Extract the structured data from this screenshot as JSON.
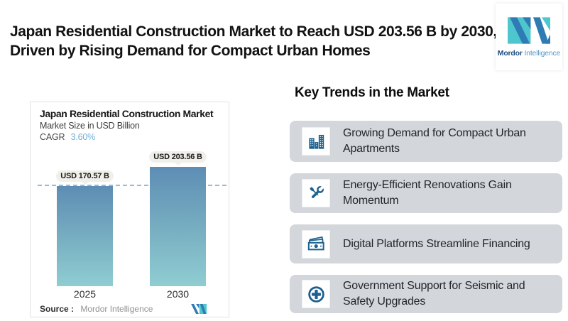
{
  "header": {
    "title": "Japan Residential Construction Market to Reach USD 203.56 B by 2030, Driven by Rising Demand for Compact Urban Homes",
    "logo": {
      "brand_bold": "Mordor",
      "brand_light": "Intelligence"
    }
  },
  "chart_card": {
    "title": "Japan Residential Construction Market",
    "subtitle": "Market Size in USD Billion",
    "cagr_label": "CAGR",
    "cagr_value": "3.60%",
    "source_label": "Source :",
    "source_value": "Mordor Intelligence"
  },
  "chart_data": {
    "type": "bar",
    "title": "Japan Residential Construction Market",
    "subtitle": "Market Size in USD Billion",
    "unit": "USD Billion",
    "cagr": "3.60%",
    "categories": [
      "2025",
      "2030"
    ],
    "values": [
      170.57,
      203.56
    ],
    "value_labels": [
      "USD 170.57 B",
      "USD 203.56 B"
    ],
    "dashed_reference_line_at": 170.57,
    "bar_gradient": [
      "#5e8db4",
      "#8fcdd2"
    ],
    "dashed_line_color": "#92bcdb",
    "source": "Mordor Intelligence",
    "legend": "none",
    "grid": "off"
  },
  "trends": {
    "heading": "Key Trends in the Market",
    "items": [
      {
        "icon": "buildings-icon",
        "text": "Growing Demand for Compact Urban Apartments"
      },
      {
        "icon": "tools-icon",
        "text": "Energy-Efficient Renovations Gain Momentum"
      },
      {
        "icon": "cash-icon",
        "text": "Digital Platforms Streamline Financing"
      },
      {
        "icon": "plus-circle-icon",
        "text": "Government Support for Seismic and Safety Upgrades"
      }
    ]
  },
  "colors": {
    "background": "#ffffff",
    "icon_blue": "#1d6190",
    "trend_card_bg": "#d3d6da",
    "pill_bg": "#f0efe9",
    "cagr_blue": "#70b1d9",
    "logo_teal": "#4ec6ce",
    "logo_blue": "#2f7cb5"
  }
}
